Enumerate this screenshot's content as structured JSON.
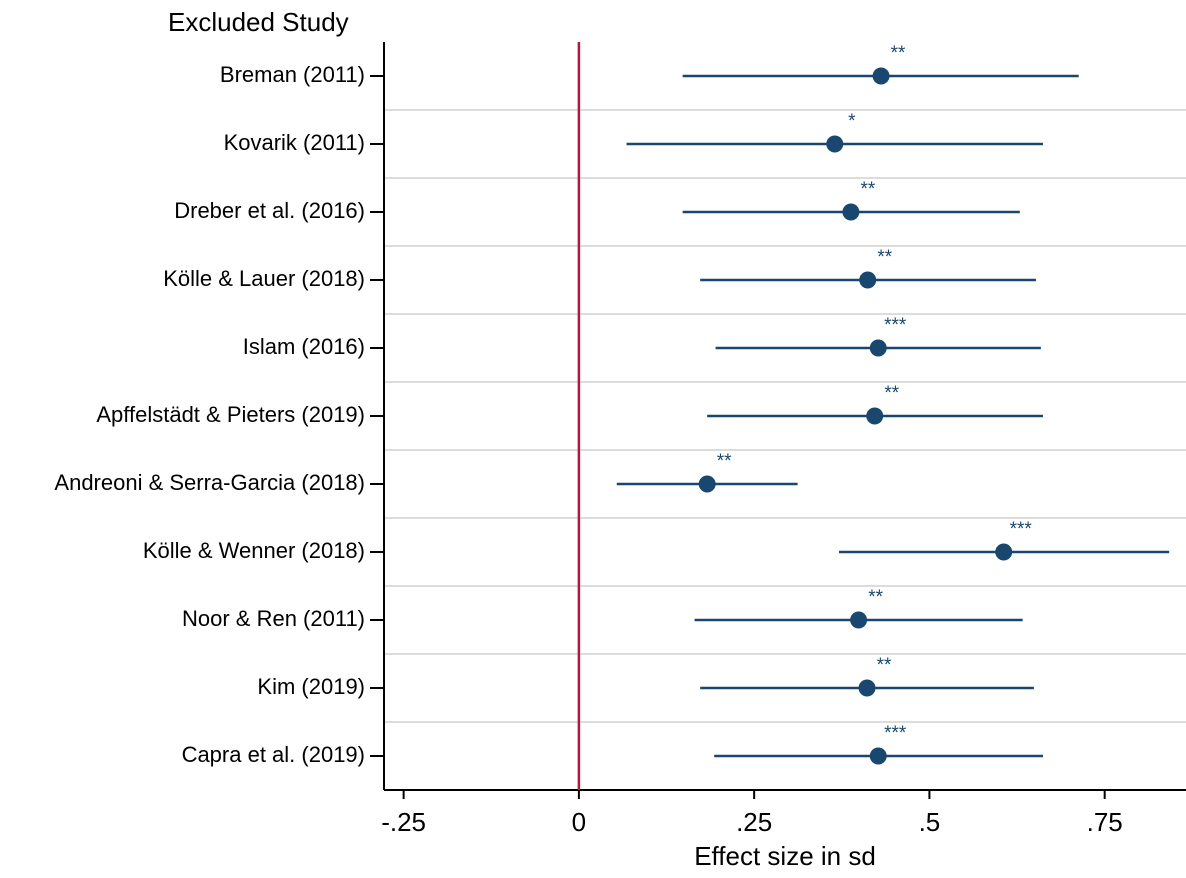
{
  "chart_data": {
    "type": "forest",
    "y_label": "Excluded Study",
    "x_label": "Effect size in sd",
    "categories": [
      "Breman (2011)",
      "Kovarik (2011)",
      "Dreber et al. (2016)",
      "Kölle & Lauer (2018)",
      "Islam (2016)",
      "Apffelstädt & Pieters (2019)",
      "Andreoni & Serra-Garcia (2018)",
      "Kölle & Wenner (2018)",
      "Noor & Ren (2011)",
      "Kim (2019)",
      "Capra et al. (2019)"
    ],
    "values": [
      0.431,
      0.365,
      0.388,
      0.412,
      0.427,
      0.422,
      0.183,
      0.606,
      0.399,
      0.411,
      0.427
    ],
    "lower": [
      0.148,
      0.068,
      0.148,
      0.173,
      0.195,
      0.183,
      0.054,
      0.371,
      0.165,
      0.173,
      0.193
    ],
    "upper": [
      0.713,
      0.662,
      0.629,
      0.652,
      0.659,
      0.662,
      0.312,
      0.842,
      0.633,
      0.649,
      0.662
    ],
    "significance": [
      "**",
      "*",
      "**",
      "**",
      "***",
      "**",
      "**",
      "***",
      "**",
      "**",
      "***"
    ],
    "color": "#1a476f",
    "ref_line": 0,
    "ref_color": "#b5173f",
    "grid": true,
    "xlim": [
      -0.278,
      0.866
    ],
    "xticks": [
      {
        "value": -0.25,
        "label": "-.25"
      },
      0,
      {
        "value": 0.25,
        "label": ".25"
      },
      {
        "value": 0.5,
        "label": ".5"
      },
      {
        "value": 0.75,
        "label": ".75"
      }
    ]
  }
}
